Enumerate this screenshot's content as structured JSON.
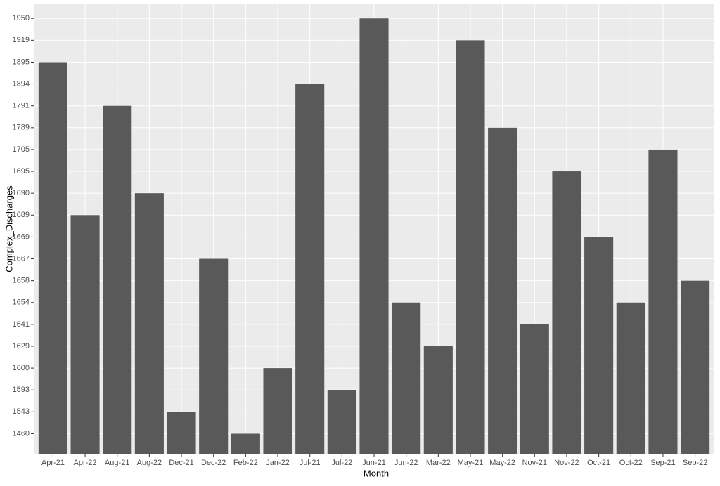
{
  "chart_data": {
    "type": "bar",
    "x_label": "Month",
    "y_label": "Complex_Discharges",
    "categories": [
      "Apr-21",
      "Apr-22",
      "Aug-21",
      "Aug-22",
      "Dec-21",
      "Dec-22",
      "Feb-22",
      "Jan-22",
      "Jul-21",
      "Jul-22",
      "Jun-21",
      "Jun-22",
      "Mar-22",
      "May-21",
      "May-22",
      "Nov-21",
      "Nov-22",
      "Oct-21",
      "Oct-22",
      "Sep-21",
      "Sep-22"
    ],
    "values": [
      1895,
      1689,
      1791,
      1690,
      1543,
      1667,
      1460,
      1600,
      1894,
      1593,
      1950,
      1654,
      1629,
      1919,
      1789,
      1641,
      1695,
      1669,
      1654,
      1705,
      1658
    ],
    "color": "#595959",
    "y_scale": "discrete",
    "yticks": [
      1460,
      1543,
      1593,
      1600,
      1629,
      1641,
      1654,
      1658,
      1667,
      1669,
      1689,
      1690,
      1695,
      1705,
      1789,
      1791,
      1894,
      1895,
      1919,
      1950
    ],
    "grid": true
  }
}
